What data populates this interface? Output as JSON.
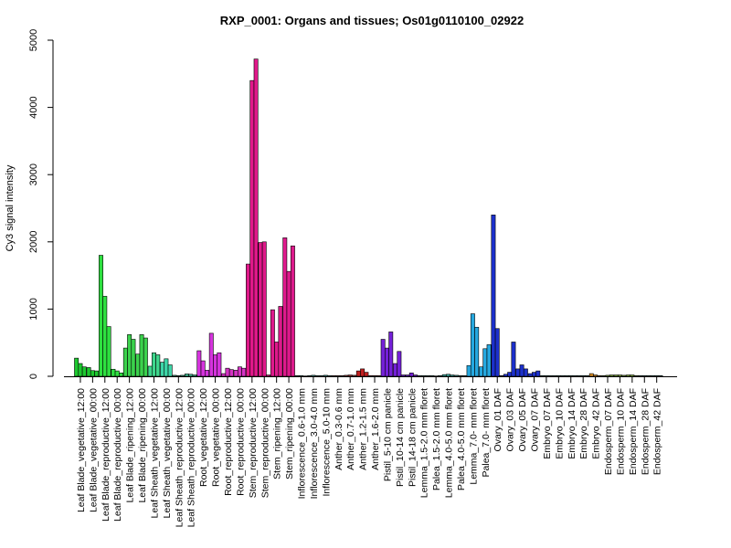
{
  "chart_data": {
    "type": "bar",
    "title": "RXP_0001: Organs and tissues; Os01g0110100_02922",
    "xlabel": "",
    "ylabel": "Cy3 signal intensity",
    "ylim": [
      0,
      5000
    ],
    "yticks": [
      0,
      1000,
      2000,
      3000,
      4000,
      5000
    ],
    "grid": false,
    "legend": "none",
    "groups": [
      {
        "label": "Leaf Blade_vegetative_12:00",
        "color": "#1dc82f",
        "values": [
          270,
          190,
          140
        ]
      },
      {
        "label": "Leaf Blade_vegetative_00:00",
        "color": "#1dc82f",
        "values": [
          130,
          85,
          80
        ]
      },
      {
        "label": "Leaf Blade_reproductive_12:00",
        "color": "#2ee040",
        "values": [
          1800,
          1190,
          740
        ]
      },
      {
        "label": "Leaf Blade_reproductive_00:00",
        "color": "#2ee040",
        "values": [
          105,
          80,
          50
        ]
      },
      {
        "label": "Leaf Blade_ripening_12:00",
        "color": "#3bd24c",
        "values": [
          420,
          620,
          550
        ]
      },
      {
        "label": "Leaf Blade_ripening_00:00",
        "color": "#3bd24c",
        "values": [
          330,
          620,
          570
        ]
      },
      {
        "label": "Leaf Sheath_vegetative_12:00",
        "color": "#3ed68c",
        "values": [
          150,
          350,
          320
        ]
      },
      {
        "label": "Leaf Sheath_vegetative_00:00",
        "color": "#3ed6a8",
        "values": [
          210,
          260,
          170
        ]
      },
      {
        "label": "Leaf Sheath_reproductive_12:00",
        "color": "#3fb890",
        "values": [
          15,
          10,
          15
        ]
      },
      {
        "label": "Leaf Sheath_reproductive_00:00",
        "color": "#3fb890",
        "values": [
          35,
          30,
          20
        ]
      },
      {
        "label": "Root_vegetative_12:00",
        "color": "#d533dd",
        "values": [
          380,
          230,
          90
        ]
      },
      {
        "label": "Root_vegetative_00:00",
        "color": "#d533dd",
        "values": [
          640,
          320,
          350
        ]
      },
      {
        "label": "Root_reproductive_12:00",
        "color": "#d533c4",
        "values": [
          40,
          120,
          100
        ]
      },
      {
        "label": "Root_reproductive_00:00",
        "color": "#d533c4",
        "values": [
          90,
          140,
          120
        ]
      },
      {
        "label": "Stem_reproductive_12:00",
        "color": "#e0188a",
        "values": [
          1670,
          4400,
          4720
        ]
      },
      {
        "label": "Stem_reproductive_00:00",
        "color": "#e0188a",
        "values": [
          1990,
          2000,
          20
        ]
      },
      {
        "label": "Stem_ripening_12:00",
        "color": "#de1a8c",
        "values": [
          990,
          510,
          1040
        ]
      },
      {
        "label": "Stem_ripening_00:00",
        "color": "#de1a8c",
        "values": [
          2060,
          1560,
          1940
        ]
      },
      {
        "label": "Inflorescence_0.6-1.0 mm",
        "color": "#3aa89c",
        "values": [
          10,
          10,
          5
        ]
      },
      {
        "label": "Inflorescence_3.0-4.0 mm",
        "color": "#3aa89c",
        "values": [
          10,
          15,
          10
        ]
      },
      {
        "label": "Inflorescence_5.0-10 mm",
        "color": "#3aa89c",
        "values": [
          10,
          15,
          10
        ]
      },
      {
        "label": "Anther_0.3-0.6 mm",
        "color": "#aa4040",
        "values": [
          10,
          10,
          10
        ]
      },
      {
        "label": "Anther_0.7-1.0 mm",
        "color": "#aa4040",
        "values": [
          15,
          20,
          15
        ]
      },
      {
        "label": "Anther_1.2-1.5 mm",
        "color": "#c02020",
        "values": [
          80,
          110,
          60
        ]
      },
      {
        "label": "Anther_1.6-2.0 mm",
        "color": "#c02020",
        "values": [
          10,
          10,
          10
        ]
      },
      {
        "label": "Pistil_5-10 cm panicle",
        "color": "#7420d8",
        "values": [
          550,
          420,
          660
        ]
      },
      {
        "label": "Pistil_10-14 cm panicle",
        "color": "#7420d8",
        "values": [
          190,
          370,
          20
        ]
      },
      {
        "label": "Pistil_14-18 cm panicle",
        "color": "#7420d8",
        "values": [
          20,
          50,
          20
        ]
      },
      {
        "label": "Lemma_1.5-2.0 mm floret",
        "color": "#3aa89c",
        "values": [
          10,
          10,
          10
        ]
      },
      {
        "label": "Palea_1.5-2.0 mm floret",
        "color": "#3aa89c",
        "values": [
          10,
          5,
          10
        ]
      },
      {
        "label": "Lemma_4.0-5.0 mm floret",
        "color": "#3aa89c",
        "values": [
          25,
          30,
          20
        ]
      },
      {
        "label": "Palea_4.0-5.0 mm floret",
        "color": "#3aa89c",
        "values": [
          15,
          10,
          10
        ]
      },
      {
        "label": "Lemma_7.0- mm floret",
        "color": "#25a8e0",
        "values": [
          160,
          930,
          730
        ]
      },
      {
        "label": "Palea_7.0- mm floret",
        "color": "#25a8e0",
        "values": [
          140,
          410,
          470
        ]
      },
      {
        "label": "Ovary_01 DAF",
        "color": "#1c30cc",
        "values": [
          2400,
          710,
          10
        ]
      },
      {
        "label": "Ovary_03 DAF",
        "color": "#1c30cc",
        "values": [
          30,
          60,
          510
        ]
      },
      {
        "label": "Ovary_05 DAF",
        "color": "#1c30cc",
        "values": [
          110,
          170,
          110
        ]
      },
      {
        "label": "Ovary_07 DAF",
        "color": "#1c30cc",
        "values": [
          40,
          60,
          80
        ]
      },
      {
        "label": "Embryo_07 DAF",
        "color": "#3aa89c",
        "values": [
          10,
          10,
          10
        ]
      },
      {
        "label": "Embryo_10 DAF",
        "color": "#3aa89c",
        "values": [
          10,
          10,
          10
        ]
      },
      {
        "label": "Embryo_14 DAF",
        "color": "#3aa89c",
        "values": [
          10,
          10,
          10
        ]
      },
      {
        "label": "Embryo_28 DAF",
        "color": "#3aa89c",
        "values": [
          10,
          10,
          10
        ]
      },
      {
        "label": "Embryo_42 DAF",
        "color": "#e09020",
        "values": [
          40,
          20,
          10
        ]
      },
      {
        "label": "Endosperm_07 DAF",
        "color": "#88b840",
        "values": [
          10,
          15,
          20
        ]
      },
      {
        "label": "Endosperm_10 DAF",
        "color": "#88b840",
        "values": [
          20,
          20,
          15
        ]
      },
      {
        "label": "Endosperm_14 DAF",
        "color": "#88b840",
        "values": [
          20,
          20,
          10
        ]
      },
      {
        "label": "Endosperm_28 DAF",
        "color": "#3aa89c",
        "values": [
          10,
          10,
          10
        ]
      },
      {
        "label": "Endosperm_42 DAF",
        "color": "#3aa89c",
        "values": [
          10,
          10,
          10
        ]
      }
    ]
  }
}
